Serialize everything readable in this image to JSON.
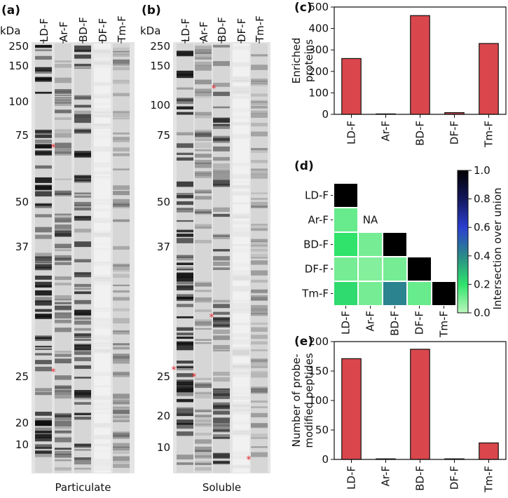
{
  "chart_data": [
    {
      "type": "gel",
      "panel": "(a)",
      "unit": "kDa",
      "lanes": [
        "LD-F",
        "Ar-F",
        "BD-F",
        "DF-F",
        "Tm-F"
      ],
      "markers": [
        250,
        150,
        100,
        75,
        50,
        37,
        25,
        20,
        10
      ],
      "xlabel": "Particulate",
      "marker_symbol": "*"
    },
    {
      "type": "gel",
      "panel": "(b)",
      "unit": "kDa",
      "lanes": [
        "LD-F",
        "Ar-F",
        "BD-F",
        "DF-F",
        "Tm-F"
      ],
      "markers": [
        250,
        150,
        100,
        75,
        50,
        37,
        25,
        20,
        10
      ],
      "xlabel": "Soluble",
      "marker_symbol": "*"
    },
    {
      "type": "bar",
      "panel": "(c)",
      "ylabel": [
        "Enriched",
        "proteins"
      ],
      "categories": [
        "LD-F",
        "Ar-F",
        "BD-F",
        "DF-F",
        "Tm-F"
      ],
      "values": [
        260,
        2,
        460,
        8,
        330
      ],
      "color": "#d9474c",
      "ylim": [
        0,
        500
      ],
      "yticks": [
        0,
        100,
        200,
        300,
        400,
        500
      ]
    },
    {
      "type": "heatmap",
      "panel": "(d)",
      "rows": [
        "LD-F",
        "Ar-F",
        "BD-F",
        "DF-F",
        "Tm-F"
      ],
      "columns": [
        "LD-F",
        "Ar-F",
        "BD-F",
        "DF-F",
        "Tm-F"
      ],
      "values": [
        [
          1.0,
          null,
          null,
          null,
          null
        ],
        [
          0.12,
          null,
          null,
          null,
          null
        ],
        [
          0.2,
          0.1,
          1.0,
          null,
          null
        ],
        [
          0.1,
          0.08,
          0.1,
          1.0,
          null
        ],
        [
          0.22,
          0.1,
          0.42,
          0.12,
          1.0
        ]
      ],
      "na_label": "NA",
      "colorbar_label": "Intersection over union",
      "clim": [
        0,
        1
      ],
      "cticks": [
        {
          "value": 0,
          "label": "0.0"
        },
        0.2,
        0.4,
        0.6,
        0.8,
        {
          "value": 1,
          "label": "1.0"
        }
      ],
      "colormap": [
        "#bdf7bd",
        "#2fe36b",
        "#2a8a88",
        "#2b3fd0",
        "#12175c",
        "#000000"
      ]
    },
    {
      "type": "bar",
      "panel": "(e)",
      "ylabel": [
        "Number of probe-",
        "modified peptides"
      ],
      "categories": [
        "LD-F",
        "Ar-F",
        "BD-F",
        "DF-F",
        "Tm-F"
      ],
      "values": [
        171,
        1,
        187,
        1,
        28
      ],
      "color": "#d9474c",
      "ylim": [
        0,
        200
      ],
      "yticks": [
        0,
        50,
        100,
        150,
        200
      ]
    }
  ]
}
